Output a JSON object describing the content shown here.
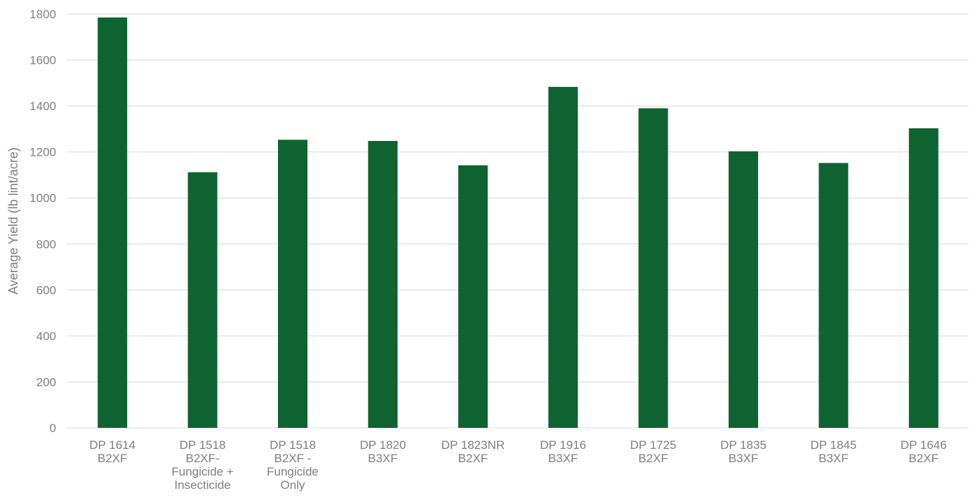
{
  "chart_data": {
    "type": "bar",
    "title": "",
    "xlabel": "",
    "ylabel": "Average Yield (lb lint/acre)",
    "ylim": [
      0,
      1800
    ],
    "yticks": [
      0,
      200,
      400,
      600,
      800,
      1000,
      1200,
      1400,
      1600,
      1800
    ],
    "grid": true,
    "legend": "none",
    "categories": [
      [
        "DP 1614",
        "B2XF"
      ],
      [
        "DP 1518",
        "B2XF-",
        "Fungicide +",
        "Insecticide"
      ],
      [
        "DP 1518",
        "B2XF -",
        "Fungicide",
        "Only"
      ],
      [
        "DP 1820",
        "B3XF"
      ],
      [
        "DP 1823NR",
        "B2XF"
      ],
      [
        "DP 1916",
        "B3XF"
      ],
      [
        "DP 1725",
        "B2XF"
      ],
      [
        "DP 1835",
        "B3XF"
      ],
      [
        "DP 1845",
        "B3XF"
      ],
      [
        "DP 1646",
        "B2XF"
      ]
    ],
    "values": [
      1785,
      1112,
      1253,
      1248,
      1142,
      1483,
      1390,
      1203,
      1152,
      1303
    ],
    "colors": {
      "bar": "#0f6330",
      "grid": "#d9d9d9",
      "text": "#7f7f7f"
    }
  }
}
